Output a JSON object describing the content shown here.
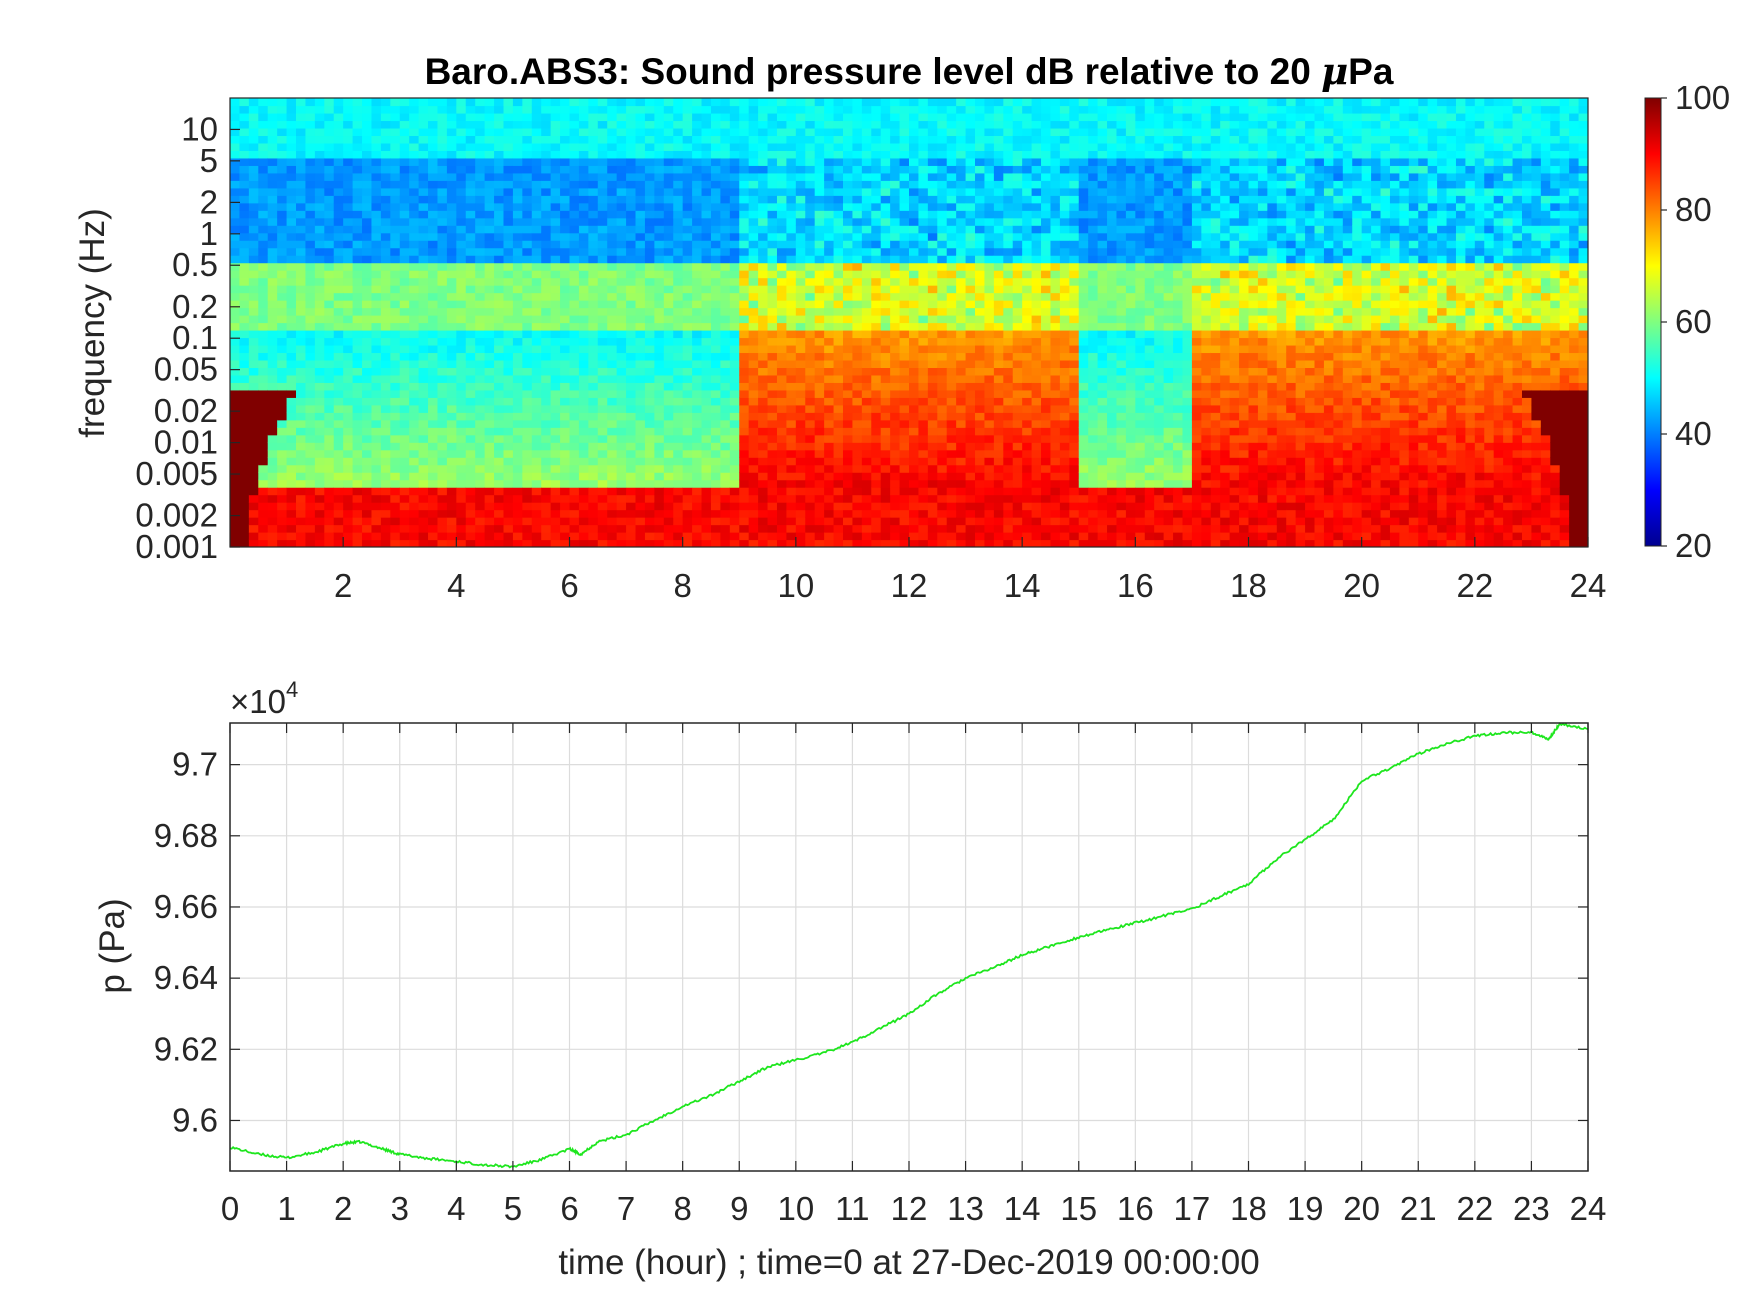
{
  "chart_data": [
    {
      "type": "heatmap",
      "title_main": "Baro.ABS3: Sound pressure level dB relative to 20 ",
      "title_mu": "μ",
      "title_end": "Pa",
      "ylabel": "frequency (Hz)",
      "xlabel": "",
      "x_ticks": [
        "2",
        "4",
        "6",
        "8",
        "10",
        "12",
        "14",
        "16",
        "18",
        "20",
        "22",
        "24"
      ],
      "x_tick_values": [
        2,
        4,
        6,
        8,
        10,
        12,
        14,
        16,
        18,
        20,
        22,
        24
      ],
      "xlim": [
        0,
        24
      ],
      "y_scale": "log",
      "y_ticks": [
        "10",
        "5",
        "2",
        "1",
        "0.5",
        "0.2",
        "0.1",
        "0.05",
        "0.02",
        "0.01",
        "0.005",
        "0.002",
        "0.001"
      ],
      "y_tick_values": [
        10,
        5,
        2,
        1,
        0.5,
        0.2,
        0.1,
        0.05,
        0.02,
        0.01,
        0.005,
        0.002,
        0.001
      ],
      "ylim": [
        0.001,
        20
      ],
      "colorbar": {
        "colormap": "jet",
        "ticks": [
          "100",
          "80",
          "60",
          "40",
          "20"
        ],
        "tick_values": [
          100,
          80,
          60,
          40,
          20
        ],
        "range": [
          20,
          100
        ]
      },
      "approx_levels_db": {
        "above_5Hz": 50,
        "band_0.5_to_5Hz": 42,
        "band_0.12_to_0.5Hz": 60,
        "below_0.12Hz_quiet_hours_0_to_9": 50,
        "below_0.12Hz_active_hours_9_to_24": 78,
        "below_0.004Hz": 90
      },
      "quiet_periods_hours": [
        [
          0,
          9
        ],
        [
          15,
          17
        ]
      ]
    },
    {
      "type": "line",
      "xlabel": "time (hour) ; time=0 at 27-Dec-2019 00:00:00",
      "ylabel": "p (Pa)",
      "exponent_base": "×10",
      "exponent_power": "4",
      "x_ticks": [
        "0",
        "1",
        "2",
        "3",
        "4",
        "5",
        "6",
        "7",
        "8",
        "9",
        "10",
        "11",
        "12",
        "13",
        "14",
        "15",
        "16",
        "17",
        "18",
        "19",
        "20",
        "21",
        "22",
        "23",
        "24"
      ],
      "xlim": [
        0,
        24
      ],
      "y_ticks": [
        "9.7",
        "9.68",
        "9.66",
        "9.64",
        "9.62",
        "9.6"
      ],
      "y_tick_values": [
        9.7,
        9.68,
        9.66,
        9.64,
        9.62,
        9.6
      ],
      "ylim": [
        9.5858,
        9.7117
      ],
      "grid": true,
      "line_color": "#1ee61e",
      "series": [
        {
          "x": [
            0,
            0.5,
            1,
            1.5,
            2,
            2.3,
            2.7,
            3,
            3.5,
            4,
            4.5,
            5,
            5.5,
            6,
            6.2,
            6.5,
            7,
            7.5,
            8,
            8.5,
            9,
            9.5,
            10,
            10.5,
            11,
            11.5,
            12,
            12.5,
            13,
            13.5,
            14,
            14.5,
            15,
            15.5,
            16,
            16.5,
            17,
            17.5,
            18,
            18.5,
            19,
            19.5,
            20,
            20.5,
            21,
            21.5,
            22,
            22.5,
            23,
            23.3,
            23.5,
            24
          ],
          "y": [
            9.5925,
            9.5905,
            9.5895,
            9.591,
            9.5935,
            9.594,
            9.592,
            9.5905,
            9.5893,
            9.5885,
            9.5875,
            9.587,
            9.589,
            9.592,
            9.5905,
            9.594,
            9.596,
            9.6,
            9.604,
            9.607,
            9.611,
            9.615,
            9.617,
            9.619,
            9.622,
            9.626,
            9.63,
            9.6355,
            9.64,
            9.643,
            9.6465,
            9.649,
            9.6515,
            9.6535,
            9.6555,
            9.6575,
            9.6595,
            9.663,
            9.6665,
            9.6735,
            9.679,
            9.6845,
            9.6955,
            9.699,
            9.703,
            9.706,
            9.708,
            9.709,
            9.709,
            9.707,
            9.7115,
            9.71
          ]
        }
      ]
    }
  ]
}
